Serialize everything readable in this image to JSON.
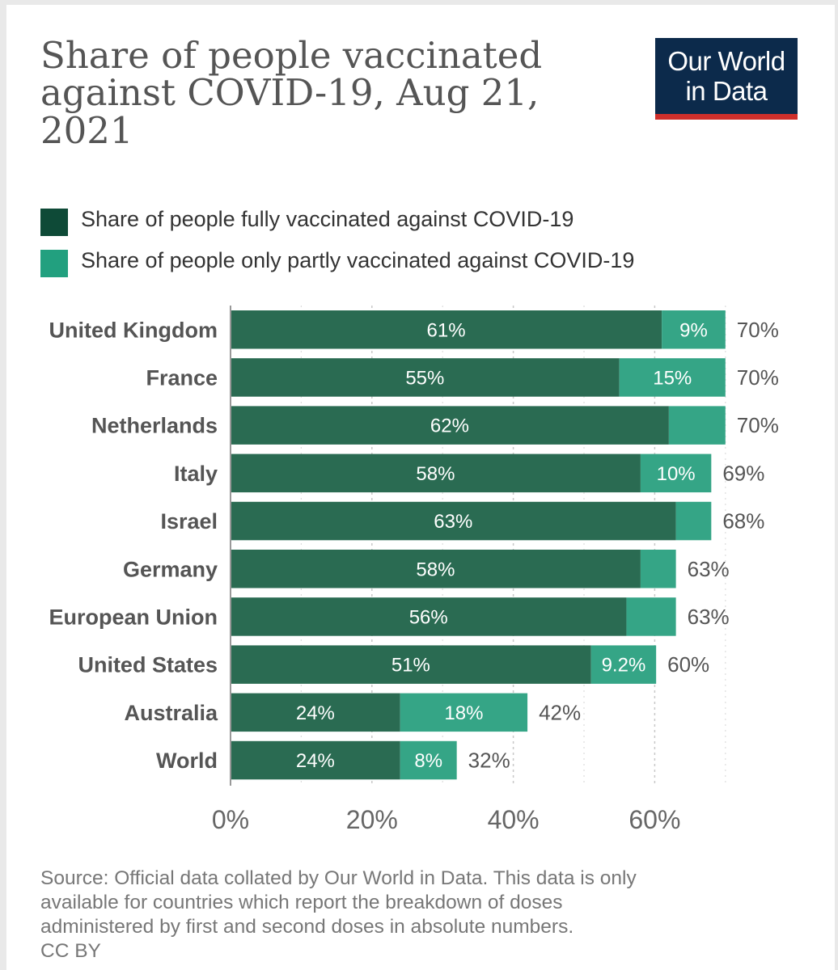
{
  "title_lines": [
    "Share of people vaccinated",
    "against COVID-19, Aug 21,",
    "2021"
  ],
  "logo": {
    "line1": "Our World",
    "line2": "in Data"
  },
  "colors": {
    "fully": "#2a6b52",
    "partly": "#35a586",
    "legend_fully": "#0e4a37",
    "legend_partly": "#22a07f",
    "logo_bg": "#0c2a4b",
    "logo_accent": "#cf2f2b"
  },
  "legend": [
    {
      "label": "Share of people fully vaccinated against COVID-19"
    },
    {
      "label": "Share of people only partly vaccinated against COVID-19"
    }
  ],
  "chart_data": {
    "type": "bar",
    "orientation": "horizontal",
    "stacked": true,
    "title": "Share of people vaccinated against COVID-19, Aug 21, 2021",
    "categories": [
      "United Kingdom",
      "France",
      "Netherlands",
      "Italy",
      "Israel",
      "Germany",
      "European Union",
      "United States",
      "Australia",
      "World"
    ],
    "series": [
      {
        "name": "Share of people fully vaccinated against COVID-19",
        "values": [
          61,
          55,
          62,
          58,
          63,
          58,
          56,
          51,
          24,
          24
        ],
        "labels": [
          "61%",
          "55%",
          "62%",
          "58%",
          "63%",
          "58%",
          "56%",
          "51%",
          "24%",
          "24%"
        ]
      },
      {
        "name": "Share of people only partly vaccinated against COVID-19",
        "values": [
          9,
          15,
          8,
          10,
          5,
          5,
          7,
          9.2,
          18,
          8
        ],
        "labels": [
          "9%",
          "15%",
          "",
          "10%",
          "",
          "",
          "",
          "9.2%",
          "18%",
          "8%"
        ]
      }
    ],
    "totals": [
      "70%",
      "70%",
      "70%",
      "69%",
      "68%",
      "63%",
      "63%",
      "60%",
      "42%",
      "32%"
    ],
    "xlim": [
      0,
      70
    ],
    "xticks": [
      0,
      20,
      40,
      60
    ],
    "xtick_labels": [
      "0%",
      "20%",
      "40%",
      "60%"
    ],
    "grid": "vertical dotted"
  },
  "source": {
    "lines": [
      "Source: Official data collated by Our World in Data. This data is only",
      "available for countries which report the breakdown of doses",
      "administered by first and second doses in absolute numbers."
    ],
    "license": "CC BY"
  }
}
